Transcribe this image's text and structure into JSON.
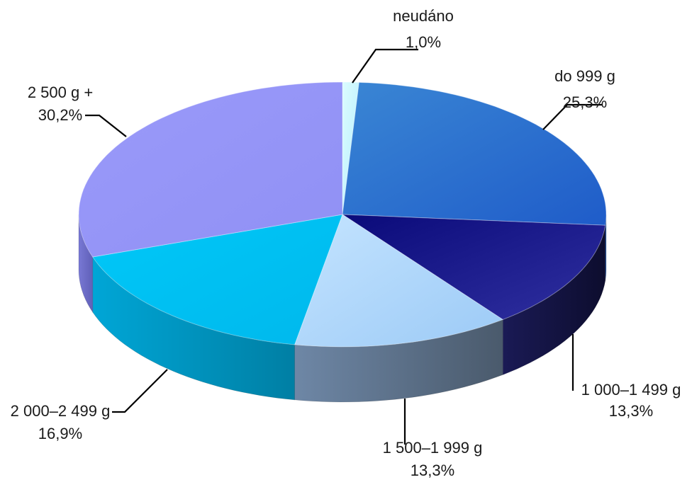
{
  "chart_data": {
    "type": "pie",
    "style": "3d",
    "slices": [
      {
        "label": "neudáno",
        "value": 1.0,
        "display": "1,0%",
        "color": "#C4F6FF"
      },
      {
        "label": "do 999 g",
        "value": 25.3,
        "display": "25,3%",
        "color": "#2C6FD8"
      },
      {
        "label": "1 000–1 499 g",
        "value": 13.3,
        "display": "13,3%",
        "color": "#1E1E8C"
      },
      {
        "label": "1 500–1 999 g",
        "value": 13.3,
        "display": "13,3%",
        "color": "#A8D0F8"
      },
      {
        "label": "2 000–2 499 g",
        "value": 16.9,
        "display": "16,9%",
        "color": "#00C0F4"
      },
      {
        "label": "2 500 g +",
        "value": 30.2,
        "display": "30,2%",
        "color": "#9696F8"
      }
    ]
  }
}
